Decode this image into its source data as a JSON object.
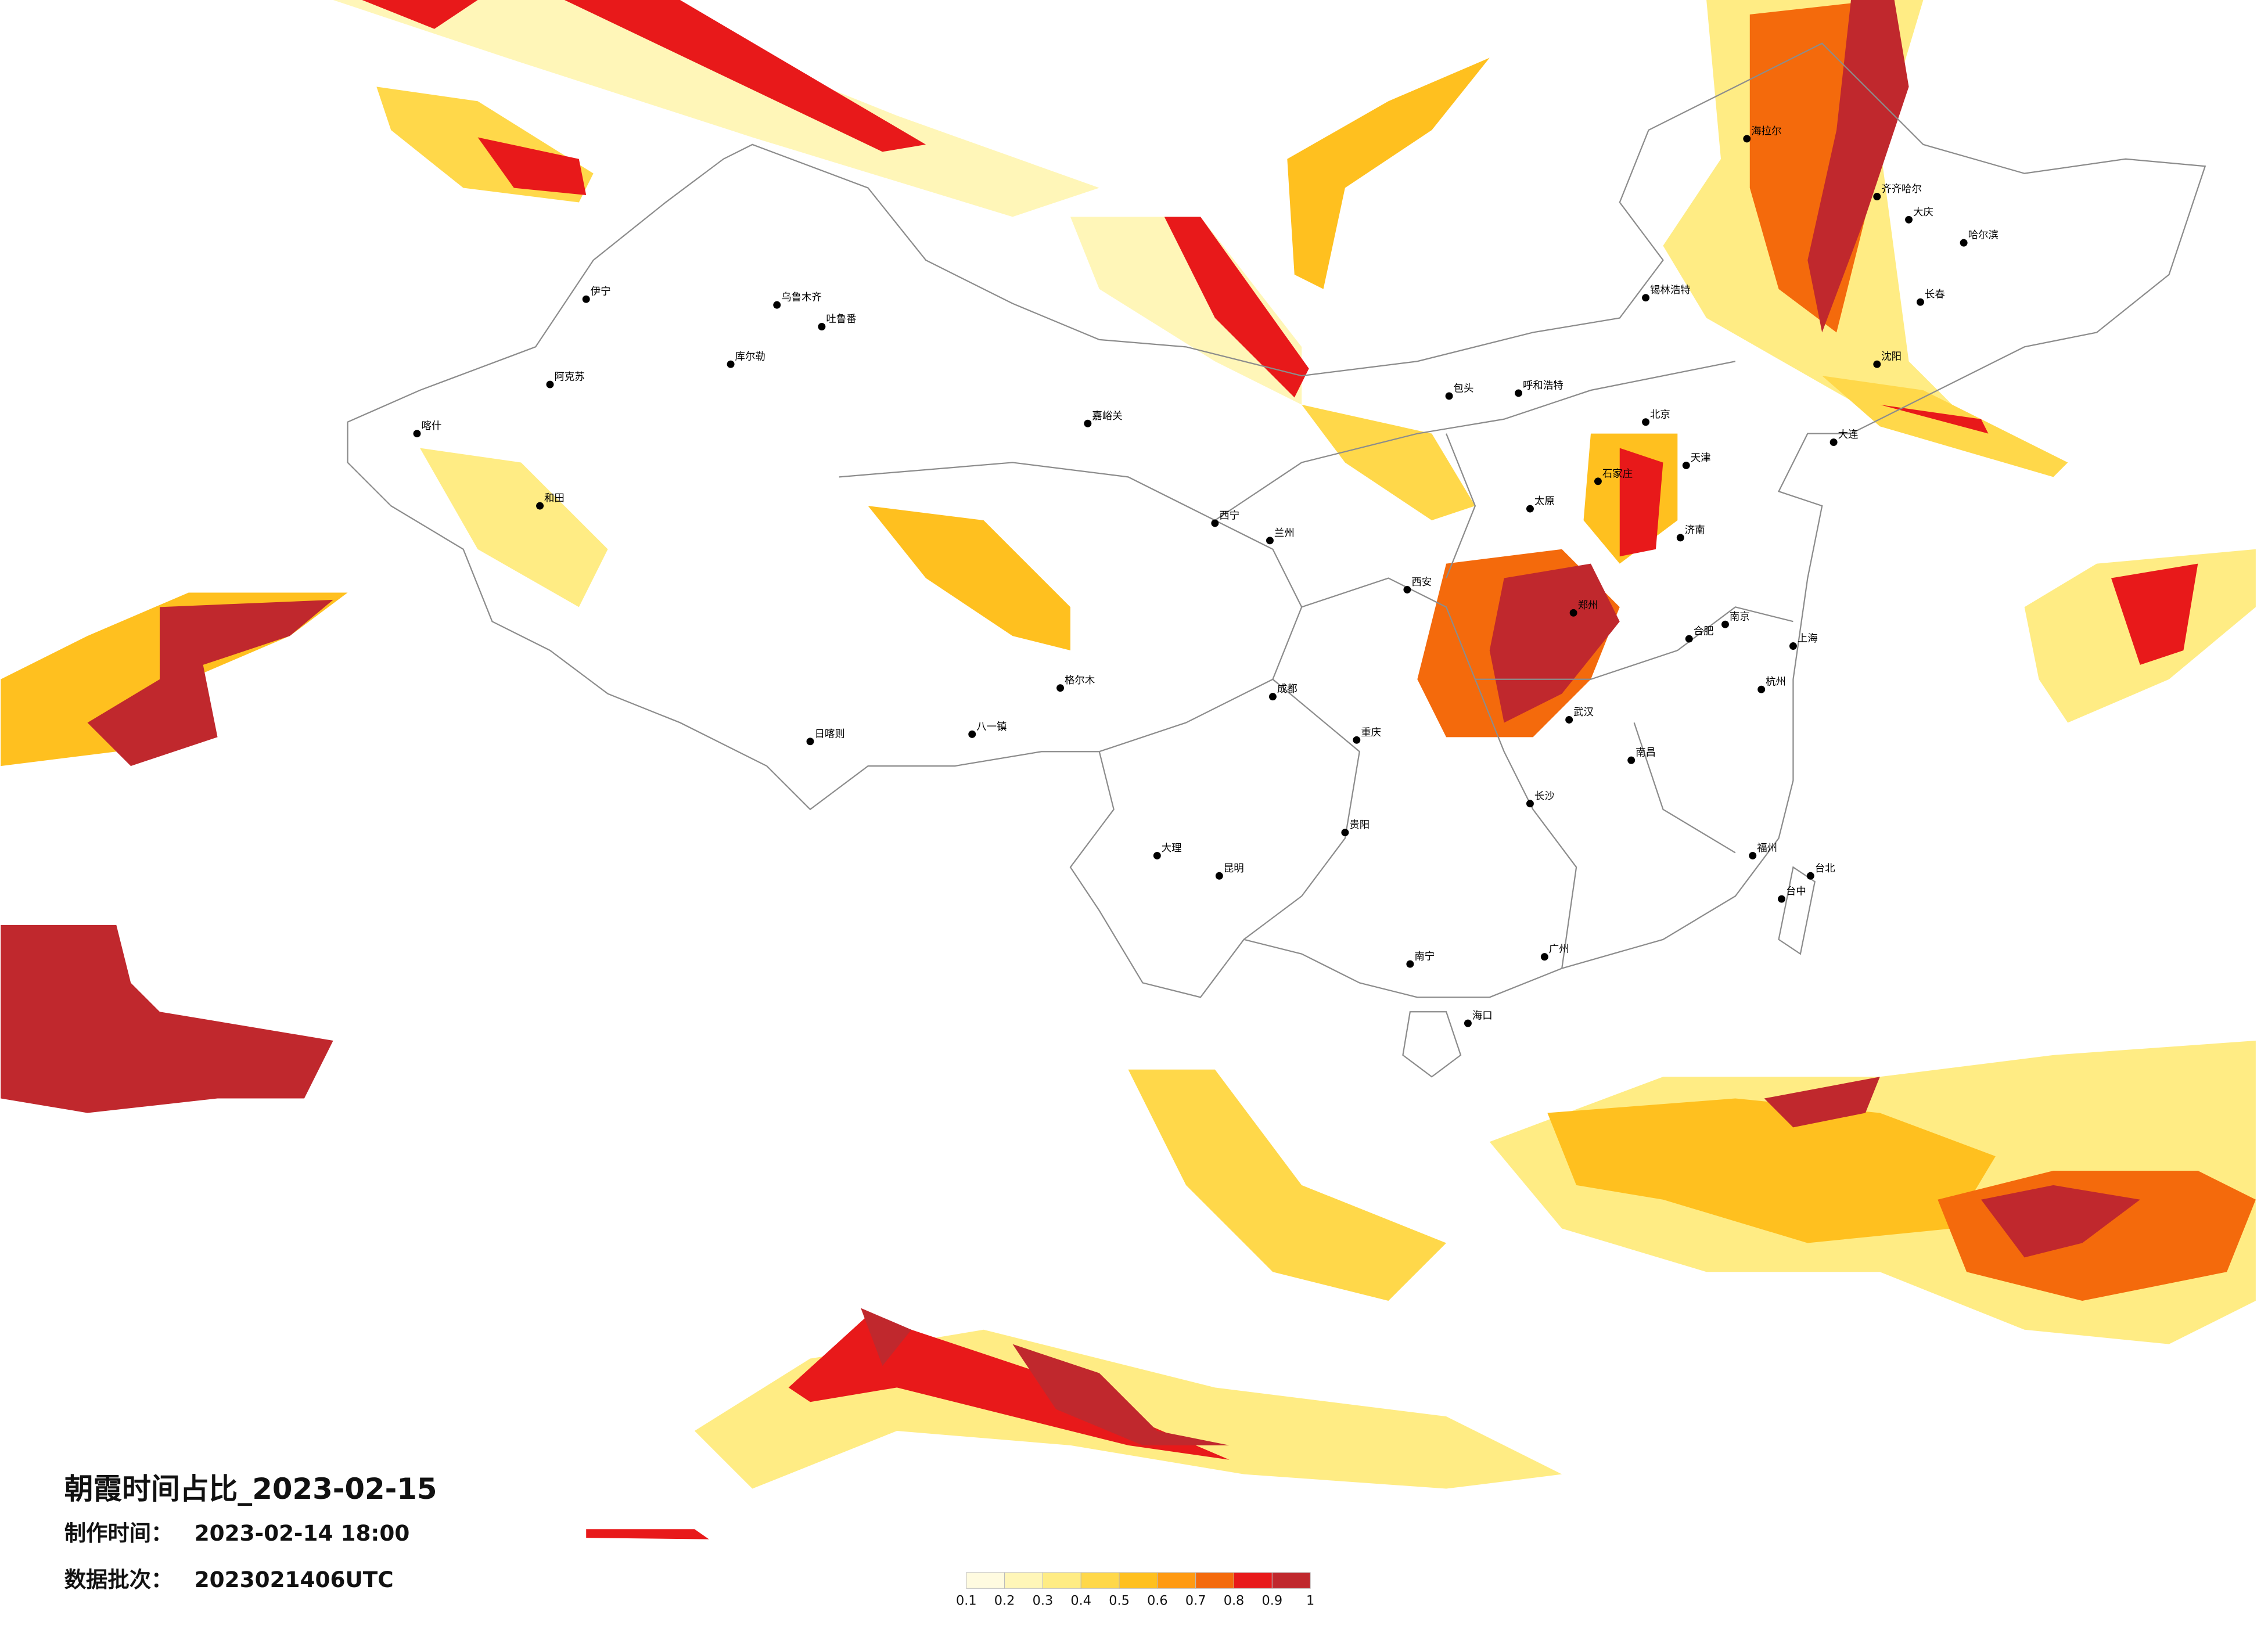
{
  "map": {
    "title": "朝霞时间占比_2023-02-15",
    "made_label": "制作时间：",
    "made_time": "2023-02-14 18:00",
    "batch_label": "数据批次：",
    "batch": "2023021406UTC",
    "colorbar": {
      "colors": [
        "#fffbe0",
        "#fff6b8",
        "#ffec84",
        "#ffd84a",
        "#ffc01f",
        "#ff9a12",
        "#f46a0c",
        "#e8191a",
        "#c0282d"
      ],
      "ticks": [
        0.1,
        0.2,
        0.3,
        0.4,
        0.5,
        0.6,
        0.7,
        0.8,
        0.9,
        1
      ]
    },
    "cities": [
      "伊宁",
      "阿克苏",
      "喀什",
      "和田",
      "库尔勒",
      "吐鲁番",
      "乌鲁木齐",
      "嘉峪关",
      "格尔木",
      "八一镇",
      "日喀则",
      "西宁",
      "兰州",
      "呼和浩特",
      "包头",
      "北京",
      "天津",
      "石家庄",
      "太原",
      "济南",
      "郑州",
      "西安",
      "成都",
      "重庆",
      "武汉",
      "南京",
      "上海",
      "杭州",
      "合肥",
      "长沙",
      "南昌",
      "福州",
      "台北",
      "广州",
      "南宁",
      "贵阳",
      "昆明",
      "海口",
      "哈尔滨",
      "长春",
      "沈阳",
      "大连",
      "海拉尔",
      "齐齐哈尔",
      "大庆",
      "锡林浩特",
      "大理",
      "台中"
    ]
  }
}
